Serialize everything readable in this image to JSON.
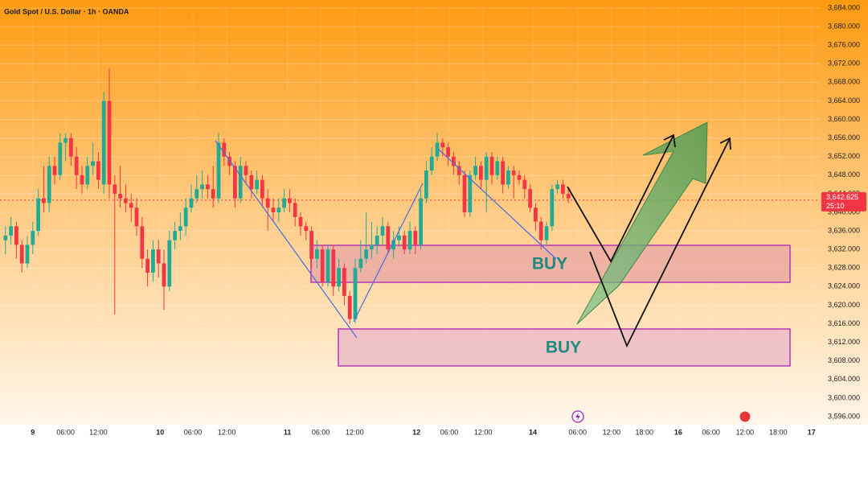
{
  "chart_data": {
    "type": "candlestick",
    "title": "Gold Spot / U.S. Dollar · 1h · OANDA",
    "up_color": "#22ab94",
    "down_color": "#f23645",
    "grid": true,
    "xlim": [
      0,
      150
    ],
    "ylim": [
      3596,
      3684
    ],
    "yticks": [
      {
        "value": 3596,
        "label": "3,596.000"
      },
      {
        "value": 3600,
        "label": "3,600.000"
      },
      {
        "value": 3604,
        "label": "3,604.000"
      },
      {
        "value": 3608,
        "label": "3,608.000"
      },
      {
        "value": 3612,
        "label": "3,612.000"
      },
      {
        "value": 3616,
        "label": "3,616.000"
      },
      {
        "value": 3620,
        "label": "3,620.000"
      },
      {
        "value": 3624,
        "label": "3,624.000"
      },
      {
        "value": 3628,
        "label": "3,628.000"
      },
      {
        "value": 3632,
        "label": "3,632.000"
      },
      {
        "value": 3636,
        "label": "3,636.000"
      },
      {
        "value": 3640,
        "label": "3,640.000"
      },
      {
        "value": 3644,
        "label": "3,644.000"
      },
      {
        "value": 3648,
        "label": "3,648.000"
      },
      {
        "value": 3652,
        "label": "3,652.000"
      },
      {
        "value": 3656,
        "label": "3,656.000"
      },
      {
        "value": 3660,
        "label": "3,660.000"
      },
      {
        "value": 3664,
        "label": "3,664.000"
      },
      {
        "value": 3668,
        "label": "3,668.000"
      },
      {
        "value": 3672,
        "label": "3,672.000"
      },
      {
        "value": 3676,
        "label": "3,676.000"
      },
      {
        "value": 3680,
        "label": "3,680.000"
      },
      {
        "value": 3684,
        "label": "3,684.000"
      }
    ],
    "xticks": [
      {
        "value": 6,
        "label": "9"
      },
      {
        "value": 12,
        "label": "06:00"
      },
      {
        "value": 18,
        "label": "12:00"
      },
      {
        "value": 29.3,
        "label": "10"
      },
      {
        "value": 35.3,
        "label": "06:00"
      },
      {
        "value": 41.5,
        "label": "12:00"
      },
      {
        "value": 52.6,
        "label": "11"
      },
      {
        "value": 58.7,
        "label": "06:00"
      },
      {
        "value": 64.9,
        "label": "12:00"
      },
      {
        "value": 76.2,
        "label": "12"
      },
      {
        "value": 82.2,
        "label": "06:00"
      },
      {
        "value": 88.4,
        "label": "12:00"
      },
      {
        "value": 97.5,
        "label": "14"
      },
      {
        "value": 105.7,
        "label": "06:00"
      },
      {
        "value": 111.9,
        "label": "12:00"
      },
      {
        "value": 117.9,
        "label": "18:00"
      },
      {
        "value": 124.1,
        "label": "16"
      },
      {
        "value": 130.1,
        "label": "06:00"
      },
      {
        "value": 136.3,
        "label": "12:00"
      },
      {
        "value": 142.4,
        "label": "18:00"
      },
      {
        "value": 148.5,
        "label": "17"
      }
    ],
    "last_price": {
      "value": 3642.625,
      "label": "3,642.625"
    },
    "countdown": "25:10",
    "annotations": [
      "BUY",
      "BUY"
    ],
    "x": [
      1,
      2,
      3,
      4,
      5,
      6,
      7,
      8,
      9,
      10,
      11,
      12,
      13,
      14,
      15,
      16,
      17,
      18,
      19,
      20,
      21,
      22,
      23,
      24,
      25,
      26,
      27,
      28,
      29,
      30,
      31,
      32,
      33,
      34,
      35,
      36,
      37,
      38,
      39,
      40,
      41,
      42,
      43,
      44,
      45,
      46,
      47,
      48,
      49,
      50,
      51,
      52,
      53,
      54,
      55,
      56,
      57,
      58,
      59,
      60,
      61,
      62,
      63,
      64,
      65,
      66,
      67,
      68,
      69,
      70,
      71,
      72,
      73,
      74,
      75,
      76,
      77,
      78,
      79,
      80,
      81,
      82,
      83,
      84,
      85,
      86,
      87,
      88,
      89,
      90,
      91,
      92,
      93,
      94,
      95,
      96,
      97,
      98,
      99,
      100,
      101,
      102,
      103,
      104
    ],
    "open": [
      3634,
      3635,
      3637,
      3633,
      3629,
      3633,
      3636,
      3643,
      3642,
      3650,
      3648,
      3655,
      3656,
      3652,
      3648,
      3646,
      3650,
      3651,
      3646,
      3664,
      3646,
      3644,
      3643,
      3642,
      3641,
      3637,
      3630,
      3627,
      3632,
      3629,
      3624,
      3634,
      3636,
      3637,
      3641,
      3643,
      3645,
      3646,
      3645,
      3643,
      3655,
      3652,
      3650,
      3643,
      3650,
      3648,
      3645,
      3647,
      3643,
      3641,
      3640,
      3641,
      3643,
      3642,
      3639,
      3637,
      3636,
      3630,
      3632,
      3625,
      3632,
      3624,
      3628,
      3622,
      3617,
      3628,
      3630,
      3632,
      3633,
      3635,
      3637,
      3632,
      3634,
      3635,
      3632,
      3636,
      3633,
      3643,
      3649,
      3652,
      3655,
      3654,
      3652,
      3650,
      3648,
      3640,
      3648,
      3650,
      3647,
      3652,
      3648,
      3651,
      3646,
      3649,
      3648,
      3647,
      3645,
      3641,
      3638,
      3634,
      3637,
      3645,
      3646,
      3644
    ],
    "high": [
      3637,
      3639,
      3638,
      3634,
      3635,
      3638,
      3645,
      3650,
      3652,
      3652,
      3657,
      3657,
      3657,
      3654,
      3650,
      3652,
      3655,
      3653,
      3666,
      3671,
      3648,
      3650,
      3646,
      3644,
      3643,
      3639,
      3632,
      3634,
      3634,
      3632,
      3636,
      3638,
      3640,
      3643,
      3646,
      3648,
      3649,
      3648,
      3650,
      3657,
      3656,
      3653,
      3651,
      3652,
      3651,
      3649,
      3649,
      3648,
      3645,
      3643,
      3643,
      3645,
      3645,
      3643,
      3640,
      3638,
      3637,
      3634,
      3633,
      3633,
      3633,
      3630,
      3629,
      3623,
      3630,
      3634,
      3640,
      3638,
      3637,
      3639,
      3638,
      3636,
      3637,
      3636,
      3638,
      3637,
      3645,
      3651,
      3654,
      3657,
      3656,
      3655,
      3653,
      3651,
      3649,
      3649,
      3652,
      3651,
      3653,
      3653,
      3652,
      3652,
      3650,
      3650,
      3649,
      3648,
      3646,
      3642,
      3639,
      3638,
      3646,
      3647,
      3647,
      3645
    ],
    "low": [
      3631,
      3633,
      3630,
      3627,
      3628,
      3631,
      3635,
      3640,
      3640,
      3646,
      3647,
      3651,
      3650,
      3645,
      3644,
      3645,
      3648,
      3645,
      3644,
      3643,
      3618,
      3641,
      3640,
      3638,
      3635,
      3628,
      3624,
      3625,
      3626,
      3619,
      3623,
      3632,
      3634,
      3635,
      3640,
      3642,
      3643,
      3643,
      3641,
      3642,
      3650,
      3648,
      3641,
      3642,
      3646,
      3643,
      3644,
      3641,
      3636,
      3638,
      3638,
      3640,
      3640,
      3637,
      3635,
      3634,
      3628,
      3628,
      3624,
      3624,
      3622,
      3623,
      3620,
      3616,
      3616,
      3627,
      3629,
      3630,
      3631,
      3633,
      3631,
      3630,
      3633,
      3631,
      3631,
      3631,
      3632,
      3642,
      3648,
      3651,
      3652,
      3650,
      3648,
      3646,
      3639,
      3639,
      3647,
      3645,
      3640,
      3646,
      3647,
      3644,
      3645,
      3643,
      3646,
      3643,
      3640,
      3636,
      3632,
      3633,
      3636,
      3644,
      3643,
      3642
    ],
    "close": [
      3635,
      3637,
      3633,
      3629,
      3633,
      3636,
      3643,
      3642,
      3650,
      3648,
      3655,
      3656,
      3652,
      3648,
      3646,
      3650,
      3651,
      3647,
      3664,
      3646,
      3644,
      3643,
      3642,
      3641,
      3637,
      3630,
      3627,
      3632,
      3629,
      3624,
      3634,
      3636,
      3637,
      3641,
      3643,
      3645,
      3646,
      3645,
      3643,
      3655,
      3652,
      3650,
      3643,
      3650,
      3648,
      3645,
      3647,
      3643,
      3641,
      3640,
      3641,
      3643,
      3642,
      3639,
      3637,
      3636,
      3630,
      3632,
      3625,
      3632,
      3624,
      3628,
      3622,
      3617,
      3628,
      3630,
      3632,
      3633,
      3635,
      3637,
      3632,
      3634,
      3635,
      3632,
      3636,
      3633,
      3643,
      3649,
      3652,
      3655,
      3654,
      3652,
      3650,
      3648,
      3640,
      3648,
      3650,
      3647,
      3652,
      3648,
      3651,
      3646,
      3649,
      3648,
      3647,
      3645,
      3641,
      3638,
      3634,
      3637,
      3645,
      3646,
      3644,
      3643
    ]
  }
}
